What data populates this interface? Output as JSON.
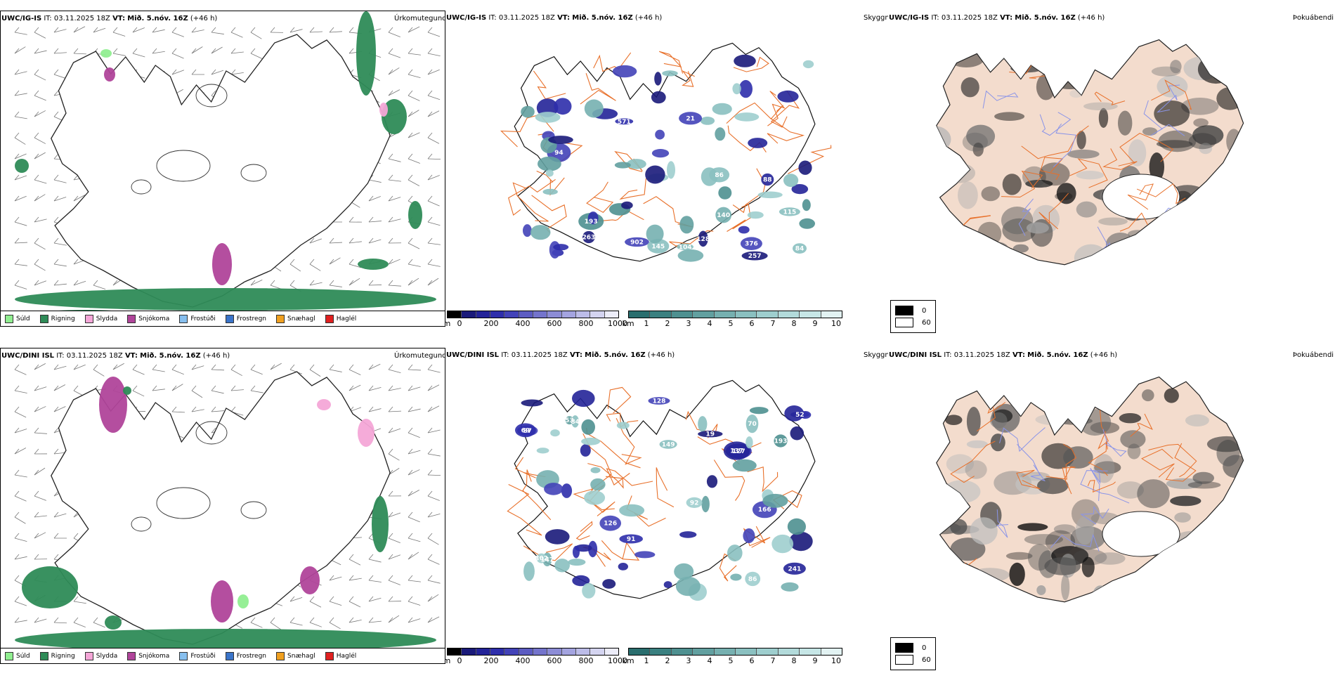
{
  "rows": [
    {
      "model": "UWC/IG-IS",
      "it_label": "IT:",
      "it_value": "03.11.2025 18Z",
      "vt_label": "VT:",
      "vt_value": "Mið. 5.nóv. 16Z",
      "lead": "(+46 h)",
      "cloud_numbers": [
        "84",
        "257",
        "104",
        "193",
        "88",
        "571",
        "376",
        "94",
        "902",
        "21",
        "86",
        "140",
        "128",
        "145",
        "263",
        "115"
      ]
    },
    {
      "model": "UWC/DINI ISL",
      "it_label": "IT:",
      "it_value": "03.11.2025 18Z",
      "vt_label": "VT:",
      "vt_value": "Mið. 5.nóv. 16Z",
      "lead": "(+46 h)",
      "cloud_numbers": [
        "147",
        "127",
        "126",
        "86",
        "84",
        "149",
        "137",
        "193",
        "52",
        "241",
        "166",
        "19",
        "91",
        "87",
        "92",
        "302",
        "128",
        "70",
        "69",
        "53"
      ]
    }
  ],
  "panel_titles": {
    "precip_type": "Úrkomutegund",
    "cloud_base": "Skyggni",
    "cloud_cover": "Þokuábendi"
  },
  "precip_legend": [
    {
      "label": "Súld",
      "color": "#90ee90"
    },
    {
      "label": "Rigning",
      "color": "#2e8b57"
    },
    {
      "label": "Slydda",
      "color": "#f4a6d7"
    },
    {
      "label": "Snjókoma",
      "color": "#b0449a"
    },
    {
      "label": "Frostúði",
      "color": "#87bfee"
    },
    {
      "label": "Frostregn",
      "color": "#3a74c9"
    },
    {
      "label": "Snæhagl",
      "color": "#f0a020"
    },
    {
      "label": "Haglél",
      "color": "#e02020"
    }
  ],
  "height_bar": {
    "unit": "m",
    "ticks": [
      "0",
      "200",
      "400",
      "600",
      "800",
      "1000"
    ],
    "colors": [
      "#000000",
      "#1a1a7a",
      "#232398",
      "#2e2eab",
      "#4343b8",
      "#5c5cc2",
      "#7474cc",
      "#8c8cd6",
      "#a4a4e0",
      "#bcbce8",
      "#d4d4f0",
      "#ececf8"
    ]
  },
  "km_bar": {
    "unit": "km",
    "ticks": [
      "1",
      "2",
      "3",
      "4",
      "5",
      "6",
      "7",
      "8",
      "9",
      "10"
    ],
    "colors": [
      "#2a6e6e",
      "#3a8080",
      "#4e9090",
      "#62a0a0",
      "#76b0b0",
      "#8ac0c0",
      "#9ecece",
      "#b2dada",
      "#c6e6e6",
      "#e2f2f2"
    ]
  },
  "cloud_legend": [
    {
      "label": "0",
      "color": "#000000"
    },
    {
      "label": "60",
      "color": "#ffffff"
    }
  ],
  "colors": {
    "land_fill": "#f3dccd",
    "roads": "#e8702a",
    "rivers": "#8a94e8"
  }
}
